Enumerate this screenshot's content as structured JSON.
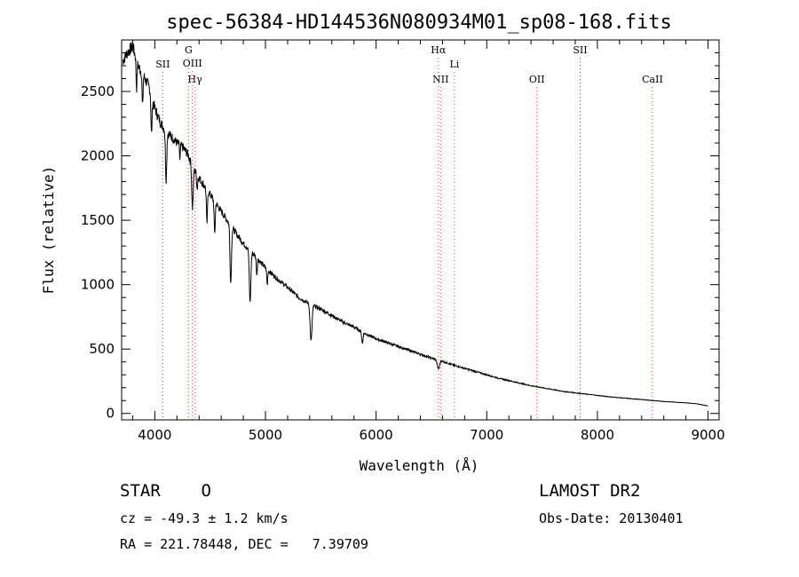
{
  "chart_data": {
    "type": "line",
    "title": "spec-56384-HD144536N080934M01_sp08-168.fits",
    "xlabel": "Wavelength (Å)",
    "ylabel": "Flux (relative)",
    "xlim": [
      3700,
      9100
    ],
    "ylim": [
      -50,
      2900
    ],
    "xticks": [
      4000,
      5000,
      6000,
      7000,
      8000,
      9000
    ],
    "yticks": [
      0,
      500,
      1000,
      1500,
      2000,
      2500
    ],
    "grid": false,
    "continuum": [
      [
        3700,
        2720
      ],
      [
        3750,
        2800
      ],
      [
        3800,
        2850
      ],
      [
        3850,
        2700
      ],
      [
        3900,
        2620
      ],
      [
        3950,
        2530
      ],
      [
        4000,
        2370
      ],
      [
        4050,
        2260
      ],
      [
        4100,
        2190
      ],
      [
        4150,
        2150
      ],
      [
        4200,
        2100
      ],
      [
        4250,
        2070
      ],
      [
        4300,
        2010
      ],
      [
        4350,
        1900
      ],
      [
        4400,
        1830
      ],
      [
        4500,
        1700
      ],
      [
        4600,
        1570
      ],
      [
        4700,
        1440
      ],
      [
        4800,
        1320
      ],
      [
        4900,
        1230
      ],
      [
        5000,
        1130
      ],
      [
        5100,
        1050
      ],
      [
        5200,
        980
      ],
      [
        5300,
        900
      ],
      [
        5400,
        850
      ],
      [
        5500,
        810
      ],
      [
        5600,
        760
      ],
      [
        5700,
        710
      ],
      [
        5800,
        670
      ],
      [
        5900,
        620
      ],
      [
        6000,
        580
      ],
      [
        6100,
        550
      ],
      [
        6200,
        520
      ],
      [
        6300,
        490
      ],
      [
        6400,
        460
      ],
      [
        6500,
        430
      ],
      [
        6600,
        405
      ],
      [
        6700,
        375
      ],
      [
        6800,
        350
      ],
      [
        6900,
        325
      ],
      [
        7000,
        300
      ],
      [
        7100,
        275
      ],
      [
        7200,
        255
      ],
      [
        7300,
        235
      ],
      [
        7400,
        215
      ],
      [
        7500,
        200
      ],
      [
        7600,
        185
      ],
      [
        7700,
        170
      ],
      [
        7800,
        160
      ],
      [
        7900,
        150
      ],
      [
        8000,
        140
      ],
      [
        8100,
        130
      ],
      [
        8200,
        122
      ],
      [
        8300,
        115
      ],
      [
        8400,
        108
      ],
      [
        8500,
        100
      ],
      [
        8600,
        93
      ],
      [
        8700,
        88
      ],
      [
        8800,
        82
      ],
      [
        8900,
        75
      ],
      [
        9000,
        58
      ]
    ],
    "absorption_lines": [
      [
        3835,
        220,
        6
      ],
      [
        3889,
        260,
        6
      ],
      [
        3970,
        300,
        7
      ],
      [
        4102,
        380,
        8
      ],
      [
        4227,
        120,
        5
      ],
      [
        4340,
        330,
        9
      ],
      [
        4383,
        110,
        6
      ],
      [
        4471,
        260,
        7
      ],
      [
        4541,
        250,
        7
      ],
      [
        4686,
        450,
        9
      ],
      [
        4861,
        400,
        10
      ],
      [
        4922,
        130,
        6
      ],
      [
        5016,
        120,
        6
      ],
      [
        5412,
        280,
        12
      ],
      [
        5876,
        90,
        8
      ],
      [
        6563,
        70,
        14
      ]
    ],
    "line_markers": [
      {
        "name": "SII",
        "wavelength": 4072
      },
      {
        "name": "G",
        "wavelength": 4305
      },
      {
        "name": "OIII",
        "wavelength": 4340
      },
      {
        "name": "Hγ",
        "wavelength": 4363
      },
      {
        "name": "Hα",
        "wavelength": 6563
      },
      {
        "name": "NII",
        "wavelength": 6583
      },
      {
        "name": "Li",
        "wavelength": 6708
      },
      {
        "name": "OII",
        "wavelength": 7453
      },
      {
        "name": "SII",
        "wavelength": 7844
      },
      {
        "name": "CaII",
        "wavelength": 8498
      }
    ]
  },
  "info": {
    "class": "STAR    O",
    "survey": "LAMOST DR2",
    "cz": "cz = -49.3 ± 1.2 km/s",
    "obs_date": "Obs-Date: 20130401",
    "coords": "RA = 221.78448, DEC =   7.39709"
  },
  "colors": {
    "spectrum": "#000000",
    "marker": "#e0403a",
    "axis": "#000000"
  }
}
